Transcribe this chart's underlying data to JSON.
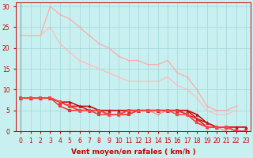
{
  "xlabel": "Vent moyen/en rafales ( km/h )",
  "bg_color": "#c8f0f0",
  "grid_color": "#a8dada",
  "xlim": [
    -0.5,
    23.5
  ],
  "ylim": [
    0,
    31
  ],
  "yticks": [
    0,
    5,
    10,
    15,
    20,
    25,
    30
  ],
  "xticks": [
    0,
    1,
    2,
    3,
    4,
    5,
    6,
    7,
    8,
    9,
    10,
    11,
    12,
    13,
    14,
    15,
    16,
    17,
    18,
    19,
    20,
    21,
    22,
    23
  ],
  "series": [
    {
      "x": [
        0,
        1,
        2,
        3,
        4,
        5,
        6,
        7,
        8,
        9,
        10,
        11,
        12,
        13,
        14,
        15,
        16,
        17,
        18,
        19,
        20,
        21,
        22
      ],
      "y": [
        23,
        23,
        23,
        30,
        28,
        27,
        25,
        23,
        21,
        20,
        18,
        17,
        17,
        16,
        16,
        17,
        14,
        13,
        10,
        6,
        5,
        5,
        6
      ],
      "color": "#ffaaaa",
      "marker": "o",
      "markersize": 1.5,
      "linewidth": 0.9,
      "linestyle": "-"
    },
    {
      "x": [
        0,
        1,
        2,
        3,
        4,
        5,
        6,
        7,
        8,
        9,
        10,
        11,
        12,
        13,
        14,
        15,
        16,
        17,
        18,
        19,
        20,
        21,
        22
      ],
      "y": [
        23,
        23,
        23,
        25,
        21,
        19,
        17,
        16,
        15,
        14,
        13,
        12,
        12,
        12,
        12,
        13,
        11,
        10,
        8,
        5,
        4,
        4,
        5
      ],
      "color": "#ffbbbb",
      "marker": "o",
      "markersize": 1.5,
      "linewidth": 0.9,
      "linestyle": "-"
    },
    {
      "x": [
        0,
        1,
        2,
        3,
        4,
        5,
        6,
        7,
        8,
        9,
        10,
        11,
        12,
        13,
        14,
        15,
        16,
        17,
        18,
        19,
        20,
        21,
        22
      ],
      "y": [
        8,
        8,
        8,
        8,
        null,
        null,
        null,
        null,
        null,
        null,
        null,
        null,
        null,
        null,
        null,
        null,
        null,
        null,
        null,
        null,
        null,
        null,
        null
      ],
      "color": "#ff7070",
      "marker": "o",
      "markersize": 1.5,
      "linewidth": 0.9,
      "linestyle": "-"
    },
    {
      "x": [
        3,
        4,
        5,
        6,
        7,
        8,
        9,
        10,
        11,
        12,
        13,
        14,
        15,
        16,
        17,
        18,
        19,
        20,
        21,
        22
      ],
      "y": [
        0,
        0,
        0,
        0,
        0,
        0,
        null,
        null,
        null,
        null,
        null,
        null,
        null,
        null,
        null,
        null,
        null,
        null,
        null,
        null
      ],
      "color": "#ff7070",
      "marker": "o",
      "markersize": 1.5,
      "linewidth": 0.9,
      "linestyle": "-"
    },
    {
      "x": [
        9,
        10,
        11,
        12,
        13,
        14,
        15,
        16,
        17,
        18,
        19,
        20,
        21,
        22
      ],
      "y": [
        4,
        4,
        4,
        5,
        5,
        4,
        5,
        5,
        5,
        3,
        1,
        1,
        0,
        null
      ],
      "color": "#ff8888",
      "marker": "o",
      "markersize": 1.5,
      "linewidth": 0.9,
      "linestyle": "-"
    },
    {
      "x": [
        0,
        1,
        2,
        3,
        4,
        5,
        6,
        7,
        8,
        9,
        10,
        11,
        12,
        13,
        14,
        15,
        16,
        17,
        18,
        19,
        20,
        21,
        22,
        23
      ],
      "y": [
        8,
        8,
        8,
        8,
        7,
        7,
        6,
        6,
        5,
        5,
        5,
        5,
        5,
        5,
        5,
        5,
        5,
        5,
        4,
        2,
        1,
        1,
        1,
        1
      ],
      "color": "#bb0000",
      "marker": "^",
      "markersize": 3,
      "linewidth": 1.1,
      "linestyle": "-"
    },
    {
      "x": [
        0,
        1,
        2,
        3,
        4,
        5,
        6,
        7,
        8,
        9,
        10,
        11,
        12,
        13,
        14,
        15,
        16,
        17,
        18,
        19,
        20,
        21,
        22,
        23
      ],
      "y": [
        8,
        8,
        8,
        8,
        7,
        6,
        6,
        5,
        5,
        5,
        5,
        5,
        5,
        5,
        5,
        5,
        5,
        5,
        3,
        2,
        1,
        1,
        1,
        1
      ],
      "color": "#cc1111",
      "marker": "^",
      "markersize": 3,
      "linewidth": 1.1,
      "linestyle": "-"
    },
    {
      "x": [
        0,
        1,
        2,
        3,
        4,
        5,
        6,
        7,
        8,
        9,
        10,
        11,
        12,
        13,
        14,
        15,
        16,
        17,
        18,
        19,
        20,
        21,
        22,
        23
      ],
      "y": [
        8,
        8,
        8,
        8,
        7,
        6,
        5,
        5,
        5,
        4,
        4,
        5,
        5,
        5,
        5,
        5,
        5,
        4,
        3,
        1,
        1,
        1,
        0,
        0
      ],
      "color": "#dd2222",
      "marker": "^",
      "markersize": 3,
      "linewidth": 1.1,
      "linestyle": "-"
    },
    {
      "x": [
        0,
        1,
        2,
        3,
        4,
        5,
        6,
        7,
        8,
        9,
        10,
        11,
        12,
        13,
        14,
        15,
        16,
        17,
        18,
        19,
        20,
        21,
        22,
        23
      ],
      "y": [
        8,
        8,
        8,
        8,
        6,
        5,
        5,
        5,
        4,
        4,
        4,
        4,
        5,
        5,
        5,
        5,
        5,
        4,
        2,
        1,
        1,
        1,
        0,
        0
      ],
      "color": "#ee3333",
      "marker": "s",
      "markersize": 2.5,
      "linewidth": 1.1,
      "linestyle": "-"
    },
    {
      "x": [
        0,
        1,
        2,
        3,
        4,
        5,
        6,
        7,
        8,
        9,
        10,
        11,
        12,
        13,
        14,
        15,
        16,
        17,
        18,
        19,
        20,
        21,
        22,
        23
      ],
      "y": [
        8,
        8,
        8,
        8,
        7,
        6,
        5,
        5,
        5,
        4,
        4,
        5,
        5,
        5,
        5,
        5,
        4,
        4,
        2,
        1,
        1,
        1,
        0,
        0
      ],
      "color": "#ff4444",
      "marker": "s",
      "markersize": 2.5,
      "linewidth": 1.1,
      "linestyle": "-"
    }
  ],
  "label_fontsize": 6.5,
  "tick_fontsize": 5.5
}
